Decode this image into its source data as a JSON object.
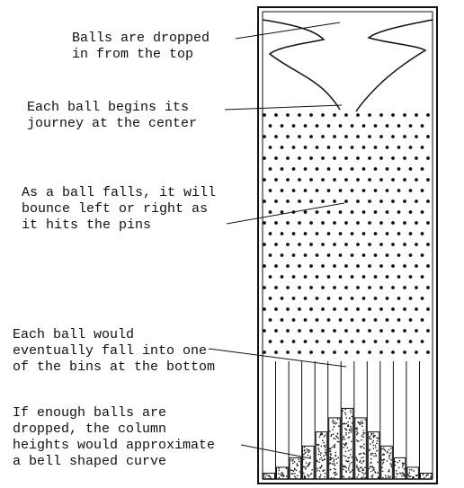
{
  "labels": {
    "drop": "Balls are dropped\nin from the top",
    "center": "Each ball begins its\njourney at the center",
    "bounce": "As a ball falls, it will\nbounce left or right as\nit hits the pins",
    "bins": "Each ball would\neventually fall into one\nof the bins at the bottom",
    "bell": "If enough balls are\ndropped, the column\nheights would approximate\na bell shaped curve"
  },
  "bins": {
    "count": 13,
    "heights": [
      0.05,
      0.1,
      0.18,
      0.28,
      0.4,
      0.52,
      0.6,
      0.52,
      0.4,
      0.28,
      0.18,
      0.1,
      0.05
    ]
  },
  "colors": {
    "ink": "#111111",
    "background": "#ffffff"
  }
}
